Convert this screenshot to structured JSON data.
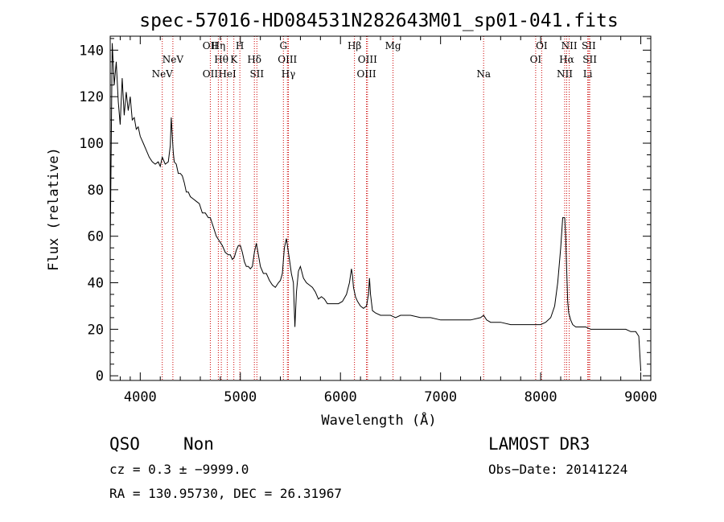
{
  "chart_data": {
    "type": "line",
    "title": "spec-57016-HD084531N282643M01_sp01-041.fits",
    "xlabel": "Wavelength (Å)",
    "ylabel": "Flux (relative)",
    "xlim": [
      3700,
      9100
    ],
    "ylim": [
      -2,
      146
    ],
    "xticks": [
      4000,
      5000,
      6000,
      7000,
      8000,
      9000
    ],
    "yticks": [
      0,
      20,
      40,
      60,
      80,
      100,
      120,
      140
    ],
    "grid": false,
    "series": [
      {
        "x": [
          3700,
          3720,
          3740,
          3760,
          3780,
          3800,
          3820,
          3840,
          3860,
          3880,
          3900,
          3920,
          3940,
          3960,
          3980,
          4000,
          4030,
          4060,
          4090,
          4120,
          4150,
          4180,
          4200,
          4220,
          4250,
          4280,
          4300,
          4310,
          4320,
          4330,
          4340,
          4360,
          4380,
          4400,
          4420,
          4440,
          4460,
          4480,
          4500,
          4530,
          4560,
          4590,
          4620,
          4650,
          4680,
          4700,
          4730,
          4760,
          4790,
          4820,
          4850,
          4880,
          4900,
          4920,
          4940,
          4960,
          4980,
          5000,
          5020,
          5040,
          5060,
          5080,
          5100,
          5120,
          5140,
          5160,
          5180,
          5200,
          5230,
          5260,
          5290,
          5320,
          5350,
          5380,
          5400,
          5420,
          5440,
          5460,
          5470,
          5490,
          5510,
          5530,
          5545,
          5560,
          5580,
          5600,
          5630,
          5660,
          5690,
          5720,
          5750,
          5780,
          5810,
          5840,
          5870,
          5900,
          5940,
          5980,
          6020,
          6060,
          6090,
          6110,
          6120,
          6130,
          6150,
          6170,
          6200,
          6230,
          6260,
          6280,
          6290,
          6300,
          6320,
          6350,
          6400,
          6450,
          6500,
          6550,
          6600,
          6700,
          6800,
          6900,
          7000,
          7100,
          7200,
          7300,
          7400,
          7430,
          7460,
          7500,
          7600,
          7700,
          7800,
          7900,
          7950,
          8000,
          8050,
          8100,
          8140,
          8170,
          8200,
          8220,
          8240,
          8250,
          8260,
          8270,
          8280,
          8300,
          8320,
          8350,
          8400,
          8450,
          8500,
          8550,
          8600,
          8650,
          8700,
          8750,
          8800,
          8850,
          8900,
          8950,
          8980,
          9000
        ],
        "values": [
          55,
          143,
          125,
          135,
          118,
          108,
          128,
          112,
          122,
          114,
          120,
          110,
          111,
          106,
          107,
          103,
          100,
          97,
          94,
          92,
          91,
          92,
          90,
          94,
          91,
          92,
          99,
          111,
          103,
          96,
          92,
          91,
          87,
          87,
          86,
          83,
          79,
          79,
          77,
          76,
          75,
          74,
          70,
          70,
          68,
          68,
          64,
          60,
          58,
          56,
          53,
          52,
          52,
          50,
          51,
          54,
          56,
          56,
          53,
          49,
          47,
          47,
          46,
          47,
          53,
          57,
          52,
          47,
          44,
          44,
          41,
          39,
          38,
          40,
          41,
          44,
          55,
          59,
          56,
          50,
          44,
          40,
          21,
          36,
          45,
          47,
          42,
          40,
          39,
          38,
          36,
          33,
          34,
          33,
          31,
          31,
          31,
          31,
          32,
          35,
          40,
          46,
          43,
          38,
          34,
          32,
          30,
          29,
          30,
          35,
          42,
          35,
          28,
          27,
          26,
          26,
          26,
          25,
          26,
          26,
          25,
          25,
          24,
          24,
          24,
          24,
          25,
          26,
          24,
          23,
          23,
          22,
          22,
          22,
          22,
          22,
          23,
          25,
          30,
          40,
          55,
          68,
          68,
          60,
          45,
          32,
          27,
          24,
          22,
          21,
          21,
          21,
          20,
          20,
          20,
          20,
          20,
          20,
          20,
          20,
          19,
          19,
          17,
          2
        ]
      }
    ],
    "emission_lines": [
      {
        "label": "NeV",
        "x": 4220,
        "row": 3
      },
      {
        "label": "NeV",
        "x": 4326,
        "row": 2
      },
      {
        "label": "OII",
        "x": 4700,
        "row": 1
      },
      {
        "label": "OII",
        "x": 4700,
        "row": 3
      },
      {
        "label": "Hη",
        "x": 4780,
        "row": 1
      },
      {
        "label": "Hθ",
        "x": 4810,
        "row": 2
      },
      {
        "label": "HeI",
        "x": 4870,
        "row": 3
      },
      {
        "label": "K",
        "x": 4935,
        "row": 2
      },
      {
        "label": "H",
        "x": 4995,
        "row": 1
      },
      {
        "label": "Hδ",
        "x": 5140,
        "row": 2
      },
      {
        "label": "SII",
        "x": 5165,
        "row": 3
      },
      {
        "label": "G",
        "x": 5430,
        "row": 1
      },
      {
        "label": "OIII",
        "x": 5470,
        "row": 2
      },
      {
        "label": "Hγ",
        "x": 5480,
        "row": 3
      },
      {
        "label": "Hβ",
        "x": 6140,
        "row": 1
      },
      {
        "label": "OIII",
        "x": 6270,
        "row": 2
      },
      {
        "label": "OIII",
        "x": 6260,
        "row": 3
      },
      {
        "label": "Mg",
        "x": 6525,
        "row": 1
      },
      {
        "label": "Na",
        "x": 7430,
        "row": 3
      },
      {
        "label": "OI",
        "x": 8010,
        "row": 1
      },
      {
        "label": "OI",
        "x": 7950,
        "row": 2
      },
      {
        "label": "NII",
        "x": 8285,
        "row": 1
      },
      {
        "label": "Hα",
        "x": 8260,
        "row": 2
      },
      {
        "label": "NII",
        "x": 8240,
        "row": 3
      },
      {
        "label": "SII",
        "x": 8480,
        "row": 1
      },
      {
        "label": "SII",
        "x": 8490,
        "row": 2
      },
      {
        "label": "Li",
        "x": 8470,
        "row": 3
      }
    ],
    "line_marker_color": "#cc0000"
  },
  "info": {
    "class": "QSO",
    "subclass": "Non",
    "survey": "LAMOST DR3",
    "cz": "cz = 0.3 ± −9999.0",
    "obs_date": "Obs−Date: 20141224",
    "coords": "RA = 130.95730, DEC =  26.31967"
  }
}
